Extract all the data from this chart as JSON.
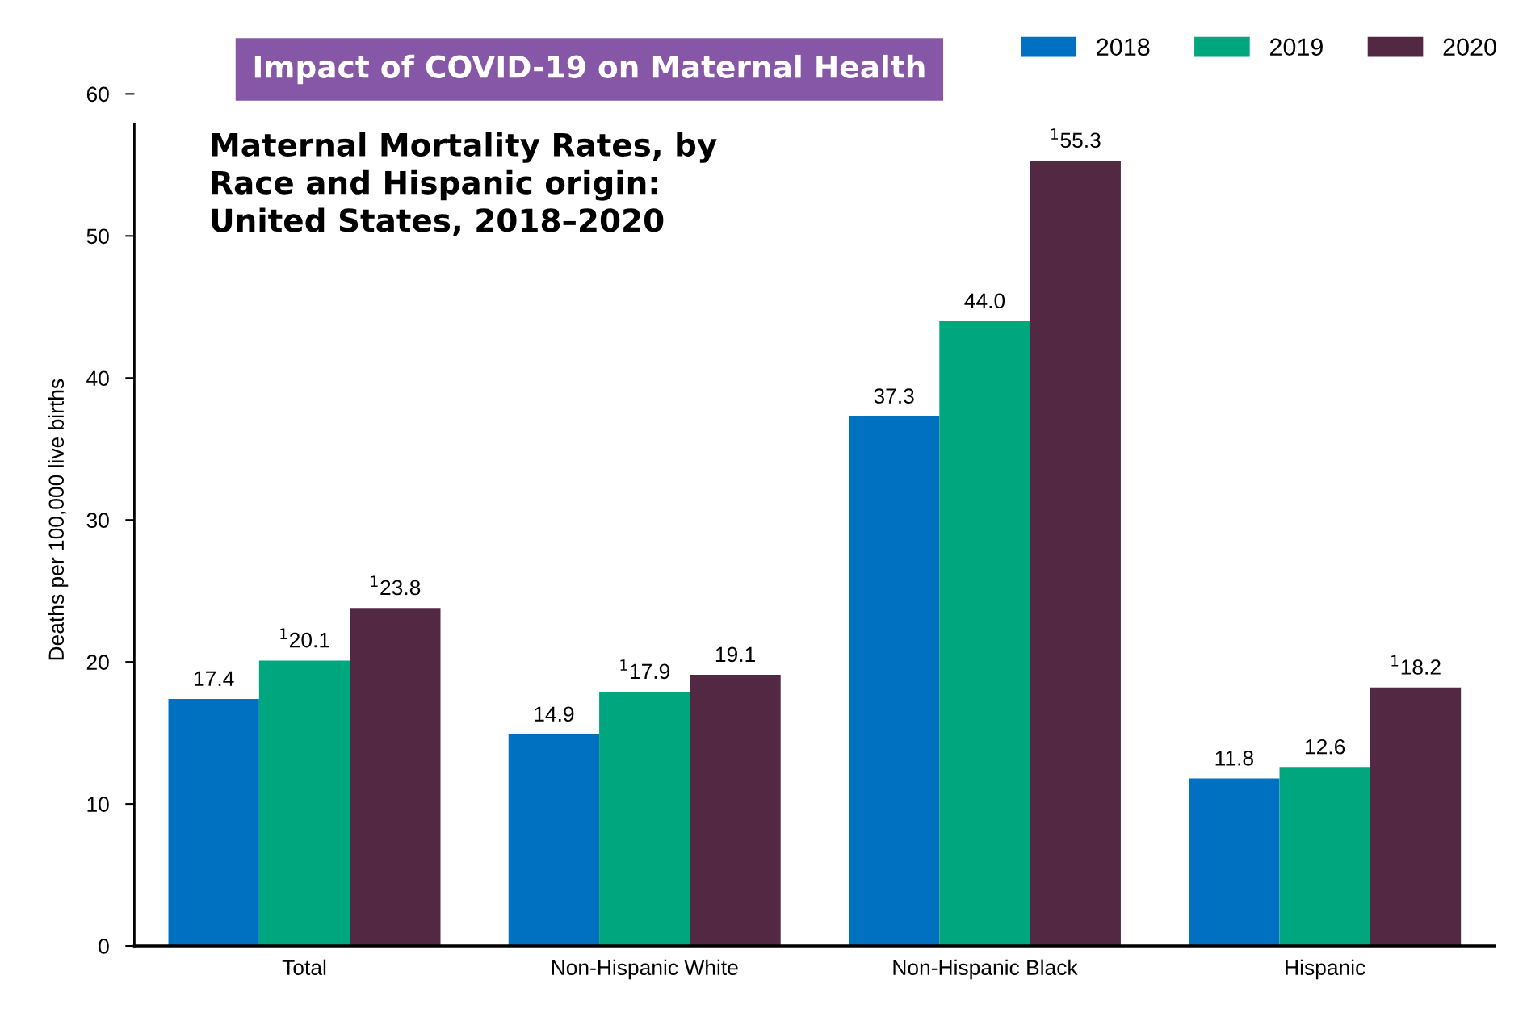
{
  "chart_data": {
    "type": "bar",
    "title": "Impact of COVID-19 on Maternal Health",
    "subtitle": "Maternal Mortality Rates, by\nRace and Hispanic origin:\nUnited States, 2018–2020",
    "ylabel": "Deaths per 100,000 live births",
    "categories": [
      "Total",
      "Non-Hispanic White",
      "Non-Hispanic Black",
      "Hispanic"
    ],
    "series": [
      {
        "name": "2018",
        "color": "#0070c0",
        "values": [
          17.4,
          14.9,
          37.3,
          11.8
        ],
        "value_labels": [
          "17.4",
          "14.9",
          "37.3",
          "11.8"
        ]
      },
      {
        "name": "2019",
        "color": "#00a77e",
        "values": [
          20.1,
          17.9,
          44.0,
          12.6
        ],
        "value_labels": [
          "$^{1}$20.1",
          "$^{1}$17.9",
          "44.0",
          "12.6"
        ]
      },
      {
        "name": "2020",
        "color": "#522842",
        "values": [
          23.8,
          19.1,
          55.3,
          18.2
        ],
        "value_labels": [
          "$^{1}$23.8",
          "19.1",
          "$^{1}$55.3",
          "$^{1}$18.2"
        ]
      }
    ],
    "ylim": [
      0,
      60
    ],
    "yticks": [
      0,
      10,
      20,
      30,
      40,
      50,
      60
    ],
    "grid": false,
    "legend": "top right"
  }
}
